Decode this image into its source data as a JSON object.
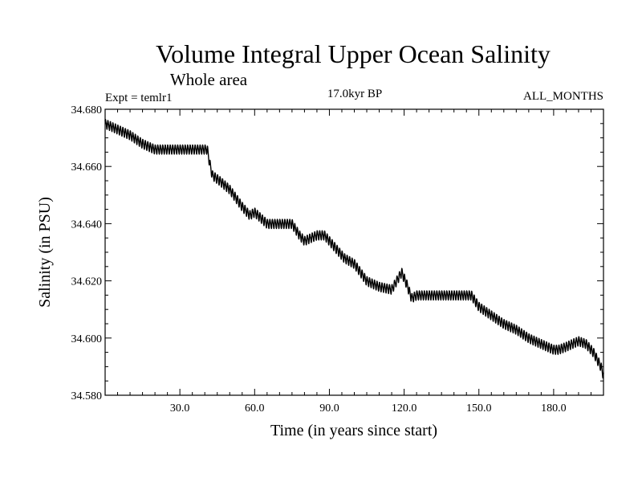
{
  "chart_data": {
    "type": "line",
    "title": "Volume Integral Upper Ocean Salinity",
    "subtitle": "Whole area",
    "experiment_label": "Expt = temlr1",
    "period_label": "17.0kyr BP",
    "months_label": "ALL_MONTHS",
    "xlabel": "Time (in years since start)",
    "ylabel": "Salinity (in PSU)",
    "xlim": [
      0,
      200
    ],
    "ylim": [
      34.58,
      34.68
    ],
    "x_ticks": [
      30,
      60,
      90,
      120,
      150,
      180
    ],
    "x_tick_labels": [
      "30.0",
      "60.0",
      "90.0",
      "120.0",
      "150.0",
      "180.0"
    ],
    "y_ticks": [
      34.58,
      34.6,
      34.62,
      34.64,
      34.66,
      34.68
    ],
    "y_tick_labels": [
      "34.580",
      "34.600",
      "34.620",
      "34.640",
      "34.660",
      "34.680"
    ],
    "seasonal_amplitude": 0.0015,
    "series": [
      {
        "name": "Salinity",
        "color": "#000000",
        "x": [
          0,
          5,
          10,
          15,
          20,
          30,
          40,
          41,
          42,
          43,
          46,
          50,
          55,
          58,
          60,
          65,
          70,
          75,
          78,
          80,
          85,
          88,
          92,
          96,
          100,
          105,
          110,
          115,
          117,
          119,
          121,
          123,
          125,
          135,
          145,
          147,
          150,
          155,
          160,
          165,
          170,
          175,
          180,
          182,
          185,
          190,
          193,
          196,
          199,
          200
        ],
        "y": [
          34.675,
          34.673,
          34.671,
          34.668,
          34.666,
          34.666,
          34.666,
          34.666,
          34.661,
          34.657,
          34.655,
          34.652,
          34.646,
          34.643,
          34.644,
          34.64,
          34.64,
          34.64,
          34.636,
          34.634,
          34.636,
          34.636,
          34.632,
          34.628,
          34.626,
          34.62,
          34.618,
          34.617,
          34.62,
          34.623,
          34.619,
          34.614,
          34.615,
          34.615,
          34.615,
          34.615,
          34.611,
          34.608,
          34.605,
          34.603,
          34.6,
          34.598,
          34.596,
          34.596,
          34.597,
          34.599,
          34.598,
          34.595,
          34.59,
          34.587
        ]
      }
    ]
  }
}
